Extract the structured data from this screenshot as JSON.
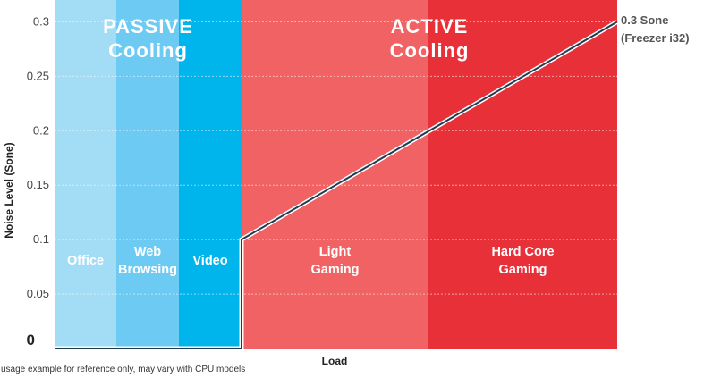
{
  "chart_data": {
    "type": "line",
    "title": "",
    "xlabel": "Load",
    "ylabel": "Noise Level (Sone)",
    "ylim": [
      0,
      0.32
    ],
    "grid": true,
    "y_ticks": [
      {
        "value": 0,
        "label": "0",
        "emphasis": true
      },
      {
        "value": 0.05,
        "label": "0.05"
      },
      {
        "value": 0.1,
        "label": "0.1"
      },
      {
        "value": 0.15,
        "label": "0.15"
      },
      {
        "value": 0.2,
        "label": "0.2"
      },
      {
        "value": 0.25,
        "label": "0.25"
      },
      {
        "value": 0.3,
        "label": "0.3"
      }
    ],
    "groups": [
      {
        "lines": [
          "PASSIVE",
          "Cooling"
        ],
        "zones": [
          0,
          2
        ]
      },
      {
        "lines": [
          "ACTIVE",
          "Cooling"
        ],
        "zones": [
          3,
          4
        ]
      }
    ],
    "zones": [
      {
        "lines": [
          "Office"
        ],
        "color": "#a3dcf5"
      },
      {
        "lines": [
          "Web",
          "Browsing"
        ],
        "color": "#6ccaf3"
      },
      {
        "lines": [
          "Video"
        ],
        "color": "#00b5ec"
      },
      {
        "lines": [
          "Light",
          "Gaming"
        ],
        "color": "#f06263"
      },
      {
        "lines": [
          "Hard Core",
          "Gaming"
        ],
        "color": "#e83039"
      }
    ],
    "series": [
      {
        "values": [
          0,
          0,
          0,
          0.1,
          0.3
        ],
        "color": "#1f3d52"
      }
    ],
    "annotation": {
      "lines": [
        "0.3 Sone",
        "(Freezer i32)"
      ]
    }
  },
  "footnote": "usage example for reference only, may vary with CPU models"
}
